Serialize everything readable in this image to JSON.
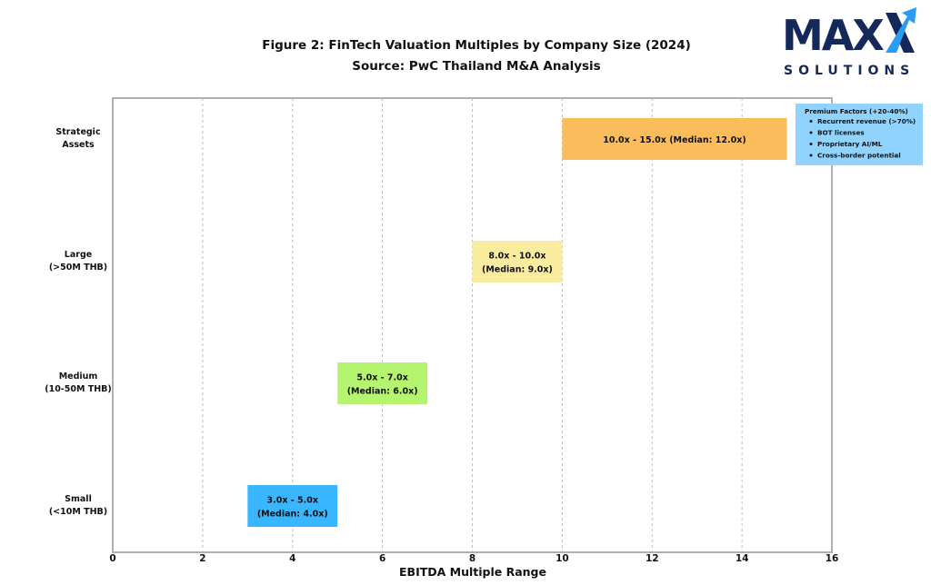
{
  "logo": {
    "main": "MAX",
    "sub": "SOLUTIONS",
    "colors": {
      "navy": "#15285a",
      "blue": "#2a9bf4"
    }
  },
  "chart_data": {
    "type": "bar",
    "orientation": "horizontal-range",
    "title": "Figure 2: FinTech Valuation Multiples by Company Size (2024)",
    "subtitle": "Source: PwC Thailand M&A Analysis",
    "xlabel": "EBITDA Multiple Range",
    "ylabel": "",
    "xlim": [
      0,
      16
    ],
    "xticks": [
      "0",
      "2",
      "4",
      "6",
      "8",
      "10",
      "12",
      "14",
      "16"
    ],
    "grid": {
      "x": true,
      "y": false,
      "style": "dashed"
    },
    "categories": [
      {
        "lines": [
          "Strategic",
          "Assets"
        ]
      },
      {
        "lines": [
          "Large",
          "(>50M THB)"
        ]
      },
      {
        "lines": [
          "Medium",
          "(10-50M THB)"
        ]
      },
      {
        "lines": [
          "Small",
          "(<10M THB)"
        ]
      }
    ],
    "ranges": [
      {
        "low": 10,
        "high": 15,
        "median": 12,
        "color": "#fbbd5c",
        "label_lines": [
          "10.0x - 15.0x (Median: 12.0x)"
        ]
      },
      {
        "low": 8,
        "high": 10,
        "median": 9,
        "color": "#faec9e",
        "label_lines": [
          "8.0x - 10.0x",
          "(Median: 9.0x)"
        ]
      },
      {
        "low": 5,
        "high": 7,
        "median": 6,
        "color": "#b5f46e",
        "label_lines": [
          "5.0x - 7.0x",
          "(Median: 6.0x)"
        ]
      },
      {
        "low": 3,
        "high": 5,
        "median": 4,
        "color": "#38b6ff",
        "label_lines": [
          "3.0x - 5.0x",
          "(Median: 4.0x)"
        ]
      }
    ],
    "annotation": {
      "title": "Premium Factors (+20-40%)",
      "items": [
        "Recurrent revenue (>70%)",
        "BOT licenses",
        "Proprietary AI/ML",
        "Cross-border potential"
      ],
      "color": "#8fd3fe",
      "placement": "right of Strategic Assets bar"
    }
  }
}
